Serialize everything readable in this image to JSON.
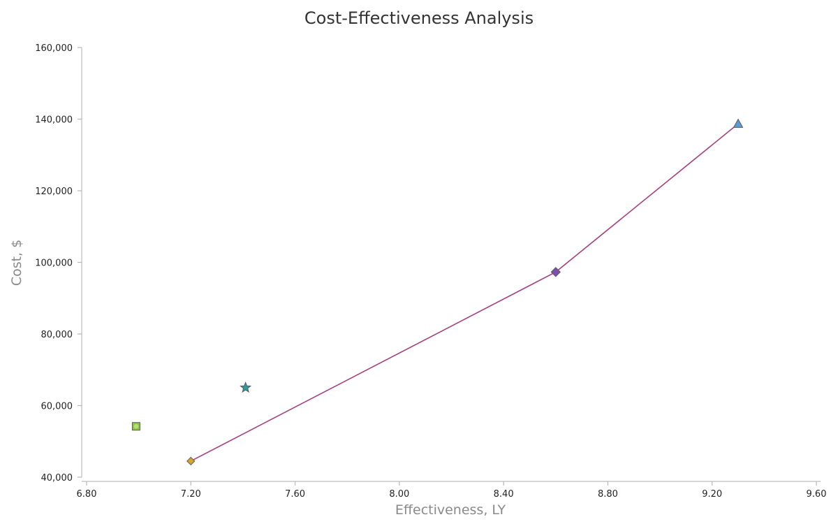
{
  "chart_data": {
    "type": "scatter",
    "title": "Cost-Effectiveness Analysis",
    "xlabel": "Effectiveness, LY",
    "ylabel": "Cost, $",
    "xlim": [
      6.8,
      9.6
    ],
    "ylim": [
      40000,
      160000
    ],
    "x_ticks": [
      "6.80",
      "7.20",
      "7.60",
      "8.00",
      "8.40",
      "8.80",
      "9.20",
      "9.60"
    ],
    "y_ticks": [
      "40,000",
      "60,000",
      "80,000",
      "100,000",
      "120,000",
      "140,000",
      "160,000"
    ],
    "grid": false,
    "legend": "none",
    "points": [
      {
        "x": 6.99,
        "y": 54200,
        "marker": "square",
        "color": "#8cc63f"
      },
      {
        "x": 7.2,
        "y": 44500,
        "marker": "diamond",
        "color": "#d4a72c"
      },
      {
        "x": 7.41,
        "y": 65000,
        "marker": "star",
        "color": "#2a9d9d"
      },
      {
        "x": 8.6,
        "y": 97300,
        "marker": "diamond",
        "color": "#7b4fb0"
      },
      {
        "x": 9.3,
        "y": 138700,
        "marker": "triangle",
        "color": "#5b9bd5"
      }
    ],
    "frontier": {
      "color": "#a3407f",
      "points": [
        [
          7.2,
          44500
        ],
        [
          8.6,
          97300
        ],
        [
          9.3,
          138700
        ]
      ]
    }
  }
}
